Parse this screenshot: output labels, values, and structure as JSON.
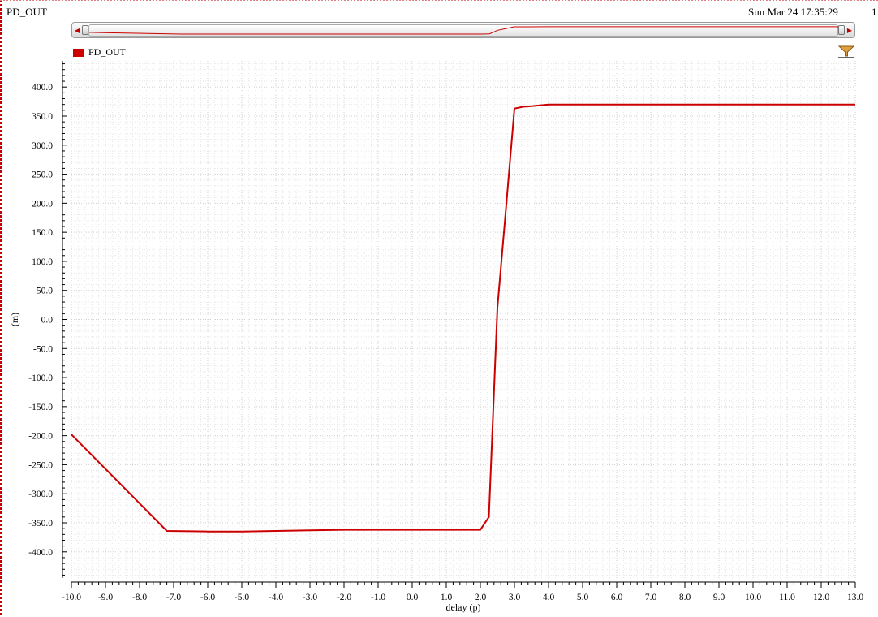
{
  "window": {
    "title": "PD_OUT",
    "timestamp": "Sun Mar 24 17:35:29",
    "page_number": "1"
  },
  "colors": {
    "series": "#cc0000",
    "grid_minor": "#e7e7e7",
    "grid_major": "#cfcfcf"
  },
  "icons": {
    "filter": "filter-funnel-icon",
    "scroll_left": "arrow-left-icon",
    "scroll_right": "arrow-right-icon"
  },
  "chart_data": {
    "type": "line",
    "title": "",
    "xlabel": "delay (p)",
    "ylabel": "(m)",
    "xlim": [
      -10.0,
      13.0
    ],
    "ylim": [
      -445,
      445
    ],
    "xticks": [
      -10,
      -9,
      -8,
      -7,
      -6,
      -5,
      -4,
      -3,
      -2,
      -1,
      0,
      1,
      2,
      3,
      4,
      5,
      6,
      7,
      8,
      9,
      10,
      11,
      12,
      13
    ],
    "yticks": [
      400,
      350,
      300,
      250,
      200,
      150,
      100,
      50,
      0,
      -50,
      -100,
      -150,
      -200,
      -250,
      -300,
      -350,
      -400
    ],
    "grid": true,
    "legend": "top-left",
    "series": [
      {
        "name": "PD_OUT",
        "x": [
          -10.0,
          -7.2,
          -6.0,
          -5.0,
          -4.0,
          -3.0,
          -2.0,
          -1.0,
          0.0,
          1.0,
          2.0,
          2.25,
          2.5,
          2.75,
          3.0,
          3.25,
          3.5,
          4.0,
          5.0,
          6.0,
          8.0,
          10.0,
          12.0,
          13.0
        ],
        "y": [
          -198,
          -364,
          -365,
          -365,
          -364,
          -363,
          -362,
          -362,
          -362,
          -362,
          -362,
          -340,
          20,
          190,
          363,
          366,
          367,
          370,
          370,
          370,
          370,
          370,
          370,
          370
        ]
      }
    ]
  }
}
